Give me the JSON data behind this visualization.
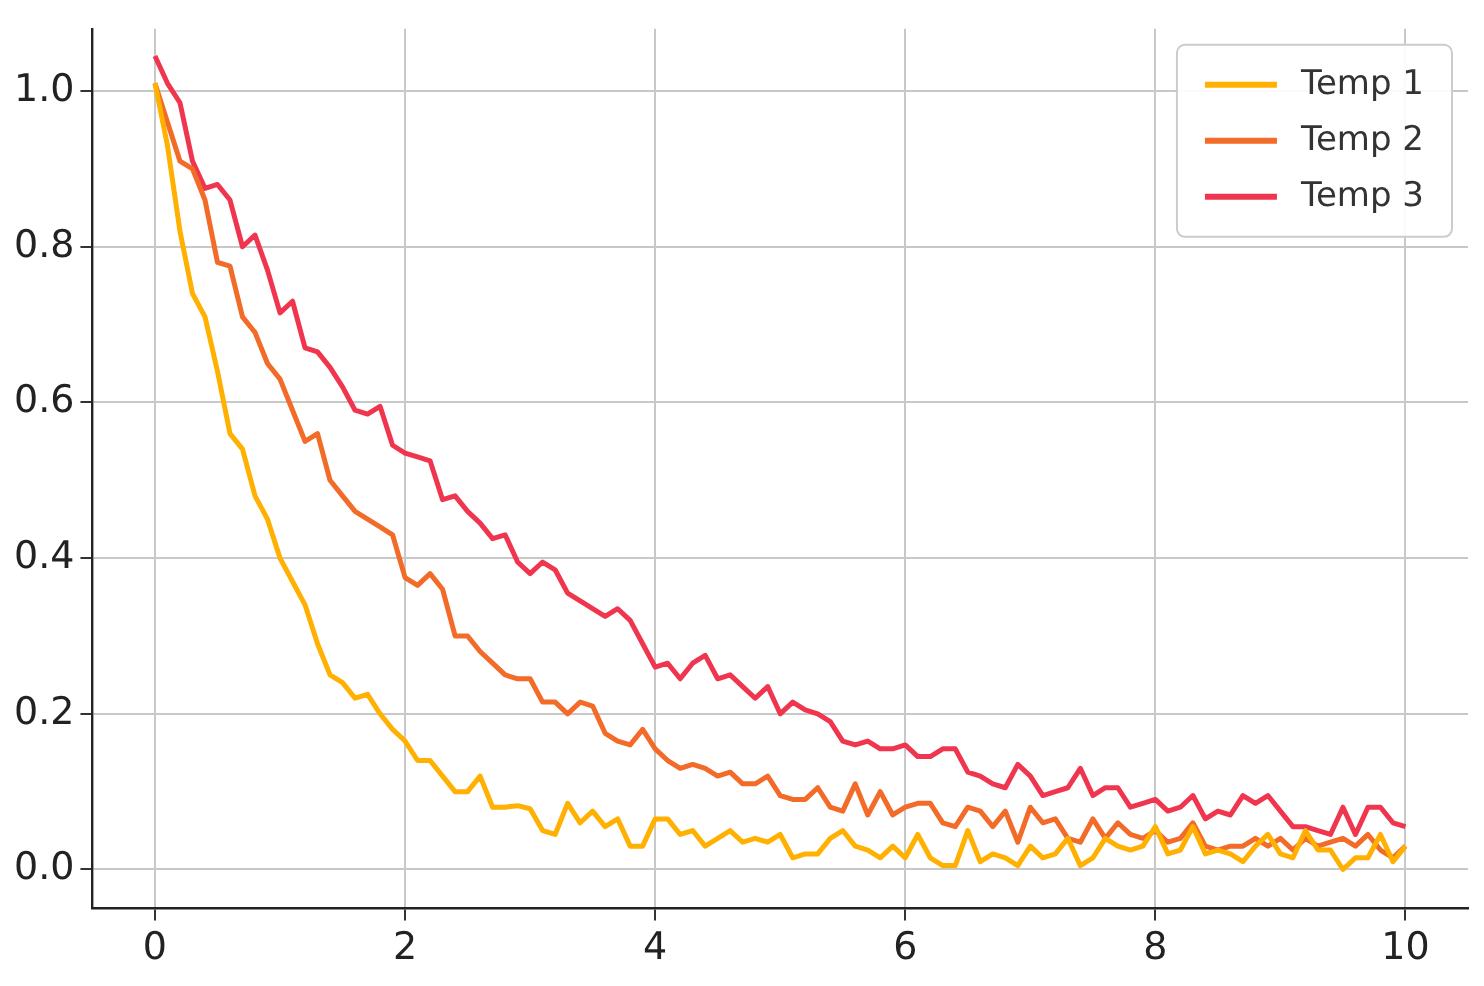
{
  "chart_data": {
    "type": "line",
    "x": [
      0,
      0.1,
      0.2,
      0.3,
      0.4,
      0.5,
      0.6,
      0.7,
      0.8,
      0.9,
      1,
      1.1,
      1.2,
      1.3,
      1.4,
      1.5,
      1.6,
      1.7,
      1.8,
      1.9,
      2,
      2.1,
      2.2,
      2.3,
      2.4,
      2.5,
      2.6,
      2.7,
      2.8,
      2.9,
      3,
      3.1,
      3.2,
      3.3,
      3.4,
      3.5,
      3.6,
      3.7,
      3.8,
      3.9,
      4,
      4.1,
      4.2,
      4.3,
      4.4,
      4.5,
      4.6,
      4.7,
      4.8,
      4.9,
      5,
      5.1,
      5.2,
      5.3,
      5.4,
      5.5,
      5.6,
      5.7,
      5.8,
      5.9,
      6,
      6.1,
      6.2,
      6.3,
      6.4,
      6.5,
      6.6,
      6.7,
      6.8,
      6.9,
      7,
      7.1,
      7.2,
      7.3,
      7.4,
      7.5,
      7.6,
      7.7,
      7.8,
      7.9,
      8,
      8.1,
      8.2,
      8.3,
      8.4,
      8.5,
      8.6,
      8.7,
      8.8,
      8.9,
      9,
      9.1,
      9.2,
      9.3,
      9.4,
      9.5,
      9.6,
      9.7,
      9.8,
      9.9,
      10
    ],
    "series": [
      {
        "name": "Temp 1",
        "color": "#ffb000",
        "values": [
          1.01,
          0.93,
          0.82,
          0.74,
          0.71,
          0.64,
          0.56,
          0.54,
          0.48,
          0.45,
          0.4,
          0.37,
          0.34,
          0.29,
          0.25,
          0.24,
          0.22,
          0.225,
          0.2,
          0.18,
          0.165,
          0.14,
          0.14,
          0.12,
          0.1,
          0.1,
          0.12,
          0.08,
          0.08,
          0.082,
          0.078,
          0.05,
          0.045,
          0.085,
          0.06,
          0.075,
          0.055,
          0.065,
          0.03,
          0.03,
          0.065,
          0.065,
          0.045,
          0.05,
          0.03,
          0.04,
          0.05,
          0.035,
          0.04,
          0.035,
          0.045,
          0.015,
          0.02,
          0.02,
          0.04,
          0.05,
          0.03,
          0.025,
          0.015,
          0.03,
          0.015,
          0.045,
          0.015,
          0.005,
          0.005,
          0.05,
          0.01,
          0.02,
          0.015,
          0.005,
          0.03,
          0.015,
          0.02,
          0.04,
          0.005,
          0.015,
          0.04,
          0.03,
          0.025,
          0.03,
          0.055,
          0.02,
          0.025,
          0.055,
          0.02,
          0.025,
          0.02,
          0.01,
          0.03,
          0.045,
          0.02,
          0.015,
          0.05,
          0.025,
          0.025,
          0.0,
          0.015,
          0.015,
          0.045,
          0.01,
          0.03
        ]
      },
      {
        "name": "Temp 2",
        "color": "#f26b28",
        "values": [
          1.01,
          0.96,
          0.91,
          0.9,
          0.86,
          0.78,
          0.775,
          0.71,
          0.69,
          0.65,
          0.63,
          0.59,
          0.55,
          0.56,
          0.5,
          0.48,
          0.46,
          0.45,
          0.44,
          0.43,
          0.375,
          0.365,
          0.38,
          0.36,
          0.3,
          0.3,
          0.28,
          0.265,
          0.25,
          0.245,
          0.245,
          0.215,
          0.215,
          0.2,
          0.215,
          0.21,
          0.175,
          0.165,
          0.16,
          0.18,
          0.155,
          0.14,
          0.13,
          0.135,
          0.13,
          0.12,
          0.125,
          0.11,
          0.11,
          0.12,
          0.095,
          0.09,
          0.09,
          0.105,
          0.08,
          0.075,
          0.11,
          0.07,
          0.1,
          0.07,
          0.08,
          0.085,
          0.085,
          0.06,
          0.055,
          0.08,
          0.075,
          0.055,
          0.075,
          0.035,
          0.08,
          0.06,
          0.065,
          0.04,
          0.035,
          0.065,
          0.04,
          0.06,
          0.045,
          0.04,
          0.05,
          0.035,
          0.04,
          0.06,
          0.03,
          0.025,
          0.03,
          0.03,
          0.04,
          0.03,
          0.04,
          0.025,
          0.04,
          0.03,
          0.035,
          0.04,
          0.03,
          0.045,
          0.025,
          0.015,
          0.03
        ]
      },
      {
        "name": "Temp 3",
        "color": "#f0364f",
        "values": [
          1.045,
          1.01,
          0.985,
          0.91,
          0.875,
          0.88,
          0.86,
          0.8,
          0.815,
          0.77,
          0.715,
          0.73,
          0.67,
          0.665,
          0.645,
          0.62,
          0.59,
          0.585,
          0.595,
          0.545,
          0.535,
          0.53,
          0.525,
          0.475,
          0.48,
          0.46,
          0.445,
          0.425,
          0.43,
          0.395,
          0.38,
          0.395,
          0.385,
          0.355,
          0.345,
          0.335,
          0.325,
          0.335,
          0.32,
          0.29,
          0.26,
          0.265,
          0.245,
          0.265,
          0.275,
          0.245,
          0.25,
          0.235,
          0.22,
          0.235,
          0.2,
          0.215,
          0.205,
          0.2,
          0.19,
          0.165,
          0.16,
          0.165,
          0.155,
          0.155,
          0.16,
          0.145,
          0.145,
          0.155,
          0.155,
          0.125,
          0.12,
          0.11,
          0.105,
          0.135,
          0.12,
          0.095,
          0.1,
          0.105,
          0.13,
          0.095,
          0.105,
          0.105,
          0.08,
          0.085,
          0.09,
          0.075,
          0.08,
          0.095,
          0.065,
          0.075,
          0.07,
          0.095,
          0.085,
          0.095,
          0.075,
          0.055,
          0.055,
          0.05,
          0.045,
          0.08,
          0.045,
          0.08,
          0.08,
          0.06,
          0.055
        ]
      }
    ],
    "xlim": [
      -0.5,
      10.5
    ],
    "xticks": [
      0,
      2,
      4,
      6,
      8,
      10
    ],
    "ylim": [
      -0.05,
      1.08
    ],
    "yticks": [
      {
        "value": 0,
        "label": "0.0"
      },
      {
        "value": 0.2,
        "label": "0.2"
      },
      {
        "value": 0.4,
        "label": "0.4"
      },
      {
        "value": 0.6,
        "label": "0.6"
      },
      {
        "value": 0.8,
        "label": "0.8"
      },
      {
        "value": 1,
        "label": "1.0"
      }
    ],
    "grid": true,
    "legend": "top right",
    "marker": "none",
    "line_style": "solid"
  }
}
